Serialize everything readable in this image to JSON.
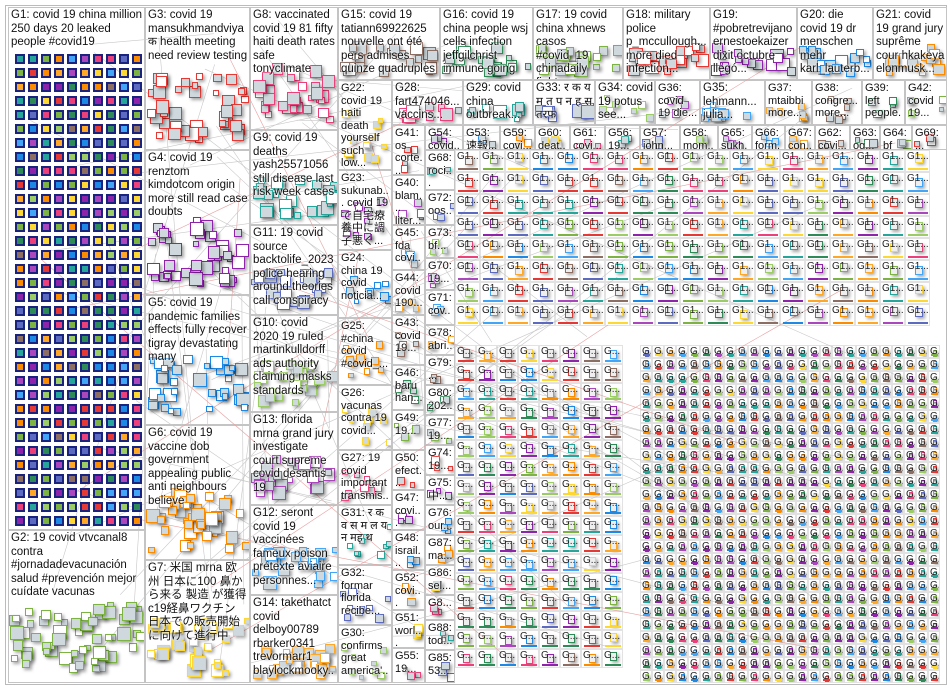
{
  "groups": [
    {
      "id": "G1",
      "label": "G1: covid 19 china million 250 days 20 leaked people #covid19"
    },
    {
      "id": "G2",
      "label": "G2: 19 covid vtvcanal8 contra #jornadadevacunación salud #prevención mejor cuídate vacunas"
    },
    {
      "id": "G3",
      "label": "G3: covid 19 mansukhmandviya क health meeting need review testing"
    },
    {
      "id": "G4",
      "label": "G4: covid 19 renztom kimdotcom origin more still read case doubts"
    },
    {
      "id": "G5",
      "label": "G5: covid 19 pandemic families effects fully recover tigray devastating many"
    },
    {
      "id": "G6",
      "label": "G6: covid 19 vaccine dob government appealing public anti neighbours believe"
    },
    {
      "id": "G7",
      "label": "G7: 米国 mrna 欧州 日本に100 鼻から来る 製造 が獲得 c19経鼻ワクチン 日本での販売開始に向けて進行中"
    },
    {
      "id": "G8",
      "label": "G8: vaccinated covid 19 81 fifty haiti death rates safe tonyclimate"
    },
    {
      "id": "G9",
      "label": "G9: covid 19 deaths yash25571056 still disease last risk week cases"
    },
    {
      "id": "G11",
      "label": "G11: 19 covid source backtolife_2023 police hearing around theories call conspiracy"
    },
    {
      "id": "G10",
      "label": "G10: covid 2020 19 ruled martinkulldorff ads authority claiming masks standards"
    },
    {
      "id": "G13",
      "label": "G13: florida mrna grand jury investigate court supreme covid desantis 19"
    },
    {
      "id": "G12",
      "label": "G12: seront covid 19 vaccinées fameux poison prétexte aviaire personnes..."
    },
    {
      "id": "G14",
      "label": "G14: takethatct covid delboy00789 rbarker0341 trevormarr1 blaylockmooky..."
    },
    {
      "id": "G15",
      "label": "G15: covid 19 tatiann69922625 nouvelle ont été pers admises quinze quadruples"
    },
    {
      "id": "G16",
      "label": "G16: covid 19 china people wsj cells infection jeffgilchrist immune going"
    },
    {
      "id": "G17",
      "label": "G17: 19 covid china xhnews casos #covid_19 chinadaily fight..."
    },
    {
      "id": "G18",
      "label": "G18: military police p_mccullough... more died infection..."
    },
    {
      "id": "G19",
      "label": "G19: #pobretrevijano ernestoekaizer dixit octubre llegó..."
    },
    {
      "id": "G20",
      "label": "G20: die covid 19 dr menschen mehr karl_lauterb..."
    },
    {
      "id": "G21",
      "label": "G21: covid 19 grand jury suprême cour hkakeya elonmusk..."
    },
    {
      "id": "G22",
      "label": "G22: covid 19 haiti death yourself such low..."
    },
    {
      "id": "G28",
      "label": "G28: fart474046... vaccins..."
    },
    {
      "id": "G29",
      "label": "G29: covid china outbreak..."
    },
    {
      "id": "G33",
      "label": "G33: र क य म त प न ह स तरफ"
    },
    {
      "id": "G34",
      "label": "G34: covid 19 potus see..."
    },
    {
      "id": "G36",
      "label": "G36: covid 19 die..."
    },
    {
      "id": "G35",
      "label": "G35: lehmann... julia..."
    },
    {
      "id": "G37",
      "label": "G37: mtaibbi more..."
    },
    {
      "id": "G38",
      "label": "G38: congre... more..."
    },
    {
      "id": "G39",
      "label": "G39: left people..."
    },
    {
      "id": "G42",
      "label": "G42: covid 19..."
    },
    {
      "id": "G41",
      "label": "G41: os corte..."
    },
    {
      "id": "G54",
      "label": "G54: covid..."
    },
    {
      "id": "G53",
      "label": "G53: 速報..."
    },
    {
      "id": "G59",
      "label": "G59: covi..."
    },
    {
      "id": "G60",
      "label": "G60: deat..."
    },
    {
      "id": "G61",
      "label": "G61: covi..."
    },
    {
      "id": "G56",
      "label": "G56: 19..."
    },
    {
      "id": "G57",
      "label": "G57: john..."
    },
    {
      "id": "G58",
      "label": "G58: mom..."
    },
    {
      "id": "G65",
      "label": "G65: sukh..."
    },
    {
      "id": "G66",
      "label": "G66: form..."
    },
    {
      "id": "G67",
      "label": "G67: con..."
    },
    {
      "id": "G62",
      "label": "G62: covi..."
    },
    {
      "id": "G63",
      "label": "G63: og..."
    },
    {
      "id": "G64",
      "label": "G64: bf 今..."
    },
    {
      "id": "G69",
      "label": "G69: ..."
    },
    {
      "id": "G23",
      "label": "G23: sukunab... covid 19 で自宅療養中に調子悪く..."
    },
    {
      "id": "G24",
      "label": "G24: china 19 covid noticia..."
    },
    {
      "id": "G25",
      "label": "G25: #china covid #covid_..."
    },
    {
      "id": "G26",
      "label": "G26: vacunas contra 19 covid..."
    },
    {
      "id": "G27",
      "label": "G27: 19 covid important transmis..."
    },
    {
      "id": "G31",
      "label": "G31: र क व स म ल य न मह थ"
    },
    {
      "id": "G32",
      "label": "G32: formar florida recibe..."
    },
    {
      "id": "G30",
      "label": "G30: confirms great america'..."
    },
    {
      "id": "G40",
      "label": "G40: blam... liter..."
    },
    {
      "id": "G45",
      "label": "G45: fda covi..."
    },
    {
      "id": "G44",
      "label": "G44: covid 190..."
    },
    {
      "id": "G43",
      "label": "G43: covid 19..."
    },
    {
      "id": "G46",
      "label": "G46: baru han..."
    },
    {
      "id": "G49",
      "label": "G49: 19..."
    },
    {
      "id": "G50",
      "label": "G50: efect..."
    },
    {
      "id": "G47",
      "label": "G47: covi..."
    },
    {
      "id": "G48",
      "label": "G48: israil..."
    },
    {
      "id": "G52",
      "label": "G52: covi..."
    },
    {
      "id": "G51",
      "label": "G51: worl..."
    },
    {
      "id": "G55",
      "label": "G55: 19..."
    },
    {
      "id": "G68",
      "label": "G68: roci..."
    },
    {
      "id": "G72",
      "label": "G72: oos..."
    },
    {
      "id": "G73",
      "label": "G73: bf..."
    },
    {
      "id": "G70",
      "label": "G70: 19..."
    },
    {
      "id": "G71",
      "label": "G71: cov..."
    },
    {
      "id": "G78",
      "label": "G78: abri..."
    },
    {
      "id": "G79",
      "label": "G79: ..."
    },
    {
      "id": "G80",
      "label": "G80: 202..."
    },
    {
      "id": "G77",
      "label": "G77: 19..."
    },
    {
      "id": "G74",
      "label": "G74: 19..."
    },
    {
      "id": "G75",
      "label": "G75: 中..."
    },
    {
      "id": "G76",
      "label": "G76: our..."
    },
    {
      "id": "G87",
      "label": "G87: ma..."
    },
    {
      "id": "G86",
      "label": "G86: sel..."
    },
    {
      "id": "G8x",
      "label": "G8..."
    },
    {
      "id": "G88",
      "label": "G88: tod..."
    },
    {
      "id": "G85",
      "label": "G85: 53..."
    }
  ],
  "small_group_labels": {
    "wide": "G1...",
    "narrow": "G..."
  },
  "node_colors": [
    "#2e8b57",
    "#7cb342",
    "#e53935",
    "#8e24aa",
    "#1e88e5",
    "#fb8c00",
    "#fdd835",
    "#ec407a",
    "#26a69a",
    "#5c6bc0",
    "#9ccc65",
    "#ab47bc",
    "#42a5f5",
    "#ffa726",
    "#8d6e63"
  ],
  "g1_node_border": "#1a237e",
  "edge_color": "#c8c8c8"
}
